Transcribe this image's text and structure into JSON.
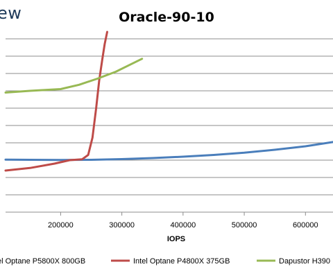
{
  "brand_text": "ew",
  "chart_data": {
    "type": "line",
    "title": "Oracle-90-10",
    "xlabel": "IOPS",
    "ylabel": "",
    "xlim": [
      110000,
      645000
    ],
    "ylim": [
      0,
      10
    ],
    "x_ticks": [
      200000,
      300000,
      400000,
      500000,
      600000
    ],
    "x_tick_labels": [
      "200000",
      "300000",
      "400000",
      "500000",
      "600000"
    ],
    "grid": "horizontal",
    "legend_position": "bottom",
    "series": [
      {
        "name": "el Optane P5800X 800GB",
        "color": "#4a7ebb",
        "x": [
          110000,
          150000,
          200000,
          250000,
          300000,
          350000,
          400000,
          450000,
          500000,
          550000,
          600000,
          645000
        ],
        "y": [
          3.03,
          3.02,
          3.01,
          3.02,
          3.06,
          3.12,
          3.2,
          3.3,
          3.43,
          3.6,
          3.8,
          4.05
        ]
      },
      {
        "name": "Intel Optane P4800X 375GB",
        "color": "#be4b48",
        "x": [
          110000,
          150000,
          190000,
          215000,
          235000,
          245000,
          252000,
          258000,
          263000,
          268000,
          272000,
          276000
        ],
        "y": [
          2.4,
          2.55,
          2.8,
          3.0,
          3.05,
          3.3,
          4.3,
          6.0,
          7.6,
          8.8,
          9.7,
          10.4
        ]
      },
      {
        "name": "Dapustor H390",
        "color": "#98b954",
        "x": [
          110000,
          150000,
          200000,
          230000,
          260000,
          290000,
          310000,
          333000
        ],
        "y": [
          6.9,
          7.0,
          7.1,
          7.35,
          7.7,
          8.1,
          8.45,
          8.85
        ]
      }
    ]
  }
}
